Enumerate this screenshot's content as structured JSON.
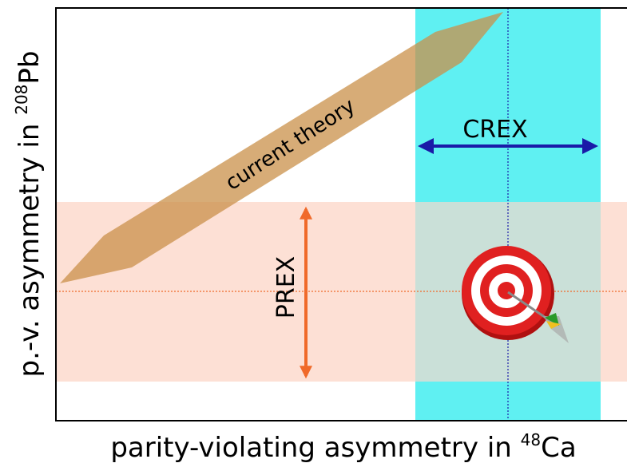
{
  "labels": {
    "theory": "current theory",
    "crex": "CREX",
    "prex": "PREX"
  },
  "axes": {
    "y": {
      "text": "p.-v. asymmetry in ",
      "sup": "208",
      "element": "Pb"
    },
    "x": {
      "text": "parity-violating asymmetry in ",
      "sup": "48",
      "element": "Ca"
    }
  }
}
